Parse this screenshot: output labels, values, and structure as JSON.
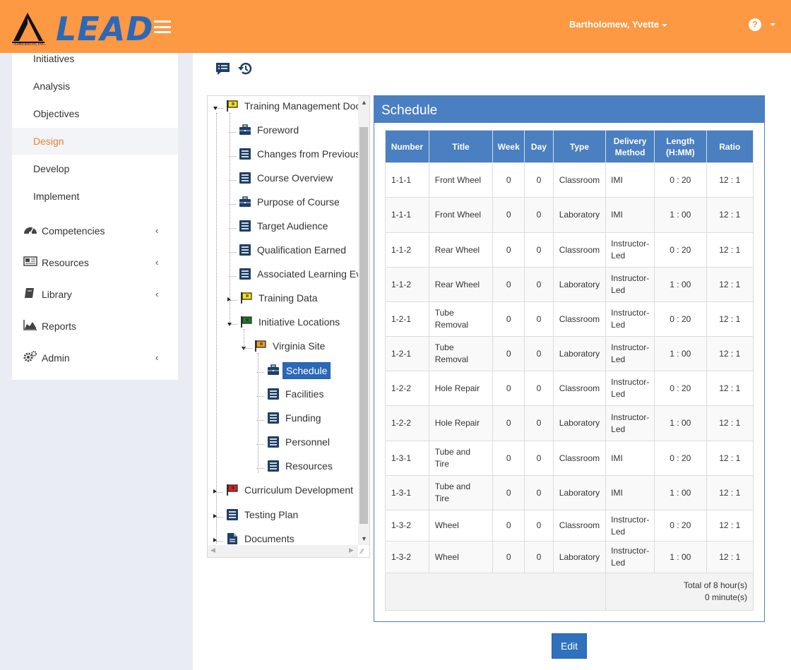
{
  "header": {
    "logo_text": "LEAD",
    "logo_subtext": "AIMEREON, INC.",
    "user_name": "Bartholomew, Yvette",
    "help_symbol": "?",
    "background_color": "#fd9843"
  },
  "sidebar": {
    "sub_items": [
      "Initiatives",
      "Analysis",
      "Objectives",
      "Design",
      "Develop",
      "Implement"
    ],
    "active_item": "Design",
    "nav_items": [
      {
        "label": "Competencies",
        "icon": "gauge-icon"
      },
      {
        "label": "Resources",
        "icon": "newspaper-icon"
      },
      {
        "label": "Library",
        "icon": "book-icon"
      },
      {
        "label": "Reports",
        "icon": "area-chart-icon"
      },
      {
        "label": "Admin",
        "icon": "gears-icon"
      }
    ]
  },
  "tree": {
    "nodes": [
      {
        "label": "Training Management Doc",
        "icon": "flag-yellow-icon"
      },
      {
        "label": "Foreword",
        "icon": "briefcase-icon"
      },
      {
        "label": "Changes from Previous",
        "icon": "document-list-icon"
      },
      {
        "label": "Course Overview",
        "icon": "document-list-icon"
      },
      {
        "label": "Purpose of Course",
        "icon": "briefcase-icon"
      },
      {
        "label": "Target Audience",
        "icon": "document-list-icon"
      },
      {
        "label": "Qualification Earned",
        "icon": "document-list-icon"
      },
      {
        "label": "Associated Learning Ev",
        "icon": "document-list-icon"
      },
      {
        "label": "Training Data",
        "icon": "flag-yellow-icon"
      },
      {
        "label": "Initiative Locations",
        "icon": "flag-green-icon"
      },
      {
        "label": "Virginia Site",
        "icon": "flag-orange-icon"
      },
      {
        "label": "Schedule",
        "icon": "briefcase-icon"
      },
      {
        "label": "Facilities",
        "icon": "document-list-icon"
      },
      {
        "label": "Funding",
        "icon": "document-list-icon"
      },
      {
        "label": "Personnel",
        "icon": "document-list-icon"
      },
      {
        "label": "Resources",
        "icon": "document-list-icon"
      },
      {
        "label": "Curriculum Development",
        "icon": "flag-red-icon"
      },
      {
        "label": "Testing Plan",
        "icon": "document-list-icon"
      },
      {
        "label": "Documents",
        "icon": "file-text-icon"
      }
    ],
    "selected": "Schedule"
  },
  "schedule": {
    "title": "Schedule",
    "columns": [
      "Number",
      "Title",
      "Week",
      "Day",
      "Type",
      "Delivery Method",
      "Length (H:MM)",
      "Ratio"
    ],
    "rows": [
      [
        "1-1-1",
        "Front Wheel",
        "0",
        "0",
        "Classroom",
        "IMI",
        "0 : 20",
        "12 : 1"
      ],
      [
        "1-1-1",
        "Front Wheel",
        "0",
        "0",
        "Laboratory",
        "IMI",
        "1 : 00",
        "12 : 1"
      ],
      [
        "1-1-2",
        "Rear Wheel",
        "0",
        "0",
        "Classroom",
        "Instructor-Led",
        "0 : 20",
        "12 : 1"
      ],
      [
        "1-1-2",
        "Rear Wheel",
        "0",
        "0",
        "Laboratory",
        "Instructor-Led",
        "1 : 00",
        "12 : 1"
      ],
      [
        "1-2-1",
        "Tube Removal",
        "0",
        "0",
        "Classroom",
        "Instructor-Led",
        "0 : 20",
        "12 : 1"
      ],
      [
        "1-2-1",
        "Tube Removal",
        "0",
        "0",
        "Laboratory",
        "Instructor-Led",
        "1 : 00",
        "12 : 1"
      ],
      [
        "1-2-2",
        "Hole Repair",
        "0",
        "0",
        "Classroom",
        "Instructor-Led",
        "0 : 20",
        "12 : 1"
      ],
      [
        "1-2-2",
        "Hole Repair",
        "0",
        "0",
        "Laboratory",
        "Instructor-Led",
        "1 : 00",
        "12 : 1"
      ],
      [
        "1-3-1",
        "Tube and Tire",
        "0",
        "0",
        "Classroom",
        "IMI",
        "0 : 20",
        "12 : 1"
      ],
      [
        "1-3-1",
        "Tube and Tire",
        "0",
        "0",
        "Laboratory",
        "IMI",
        "1 : 00",
        "12 : 1"
      ],
      [
        "1-3-2",
        "Wheel",
        "0",
        "0",
        "Classroom",
        "Instructor-Led",
        "0 : 20",
        "12 : 1"
      ],
      [
        "1-3-2",
        "Wheel",
        "0",
        "0",
        "Laboratory",
        "Instructor-Led",
        "1 : 00",
        "12 : 1"
      ]
    ],
    "total_line1": "Total of 8 hour(s)",
    "total_line2": "0 minute(s)"
  },
  "actions": {
    "edit_label": "Edit"
  },
  "colors": {
    "accent_orange": "#e8822f",
    "panel_blue": "#4a7fc1",
    "button_blue": "#2f71bc"
  }
}
